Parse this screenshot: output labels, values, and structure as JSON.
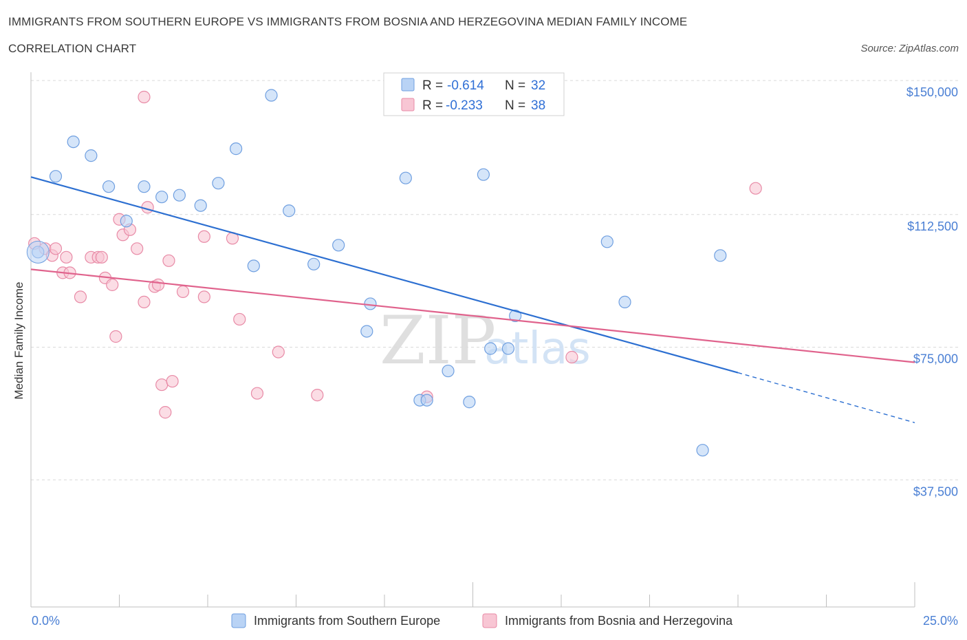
{
  "title_line1": "IMMIGRANTS FROM SOUTHERN EUROPE VS IMMIGRANTS FROM BOSNIA AND HERZEGOVINA MEDIAN FAMILY INCOME",
  "title_line2": "CORRELATION CHART",
  "source": "Source: ZipAtlas.com",
  "watermark": {
    "zip": "ZIP",
    "atlas": "atlas"
  },
  "colors": {
    "blue_fill": "#b9d3f5",
    "blue_stroke": "#6f9fe0",
    "blue_line": "#2c6fd1",
    "pink_fill": "#f8c6d4",
    "pink_stroke": "#e88aa6",
    "pink_line": "#e0628c",
    "grid": "#d9d9d9",
    "axis": "#bfbfbf"
  },
  "legend": {
    "rows": [
      {
        "r_label": "R =",
        "r_value": "-0.614",
        "n_label": "N =",
        "n_value": "32"
      },
      {
        "r_label": "R =",
        "r_value": "-0.233",
        "n_label": "N =",
        "n_value": "38"
      }
    ]
  },
  "chart_data": {
    "type": "scatter",
    "title": "IMMIGRANTS FROM SOUTHERN EUROPE VS IMMIGRANTS FROM BOSNIA AND HERZEGOVINA MEDIAN FAMILY INCOME",
    "subtitle": "CORRELATION CHART",
    "xlabel": "",
    "ylabel": "Median Family Income",
    "xlim": [
      0,
      25
    ],
    "ylim": [
      0,
      150000
    ],
    "x_tick_labels": [
      "0.0%",
      "25.0%"
    ],
    "y_ticks": [
      37500,
      75000,
      112500,
      150000
    ],
    "y_tick_labels": [
      "$37,500",
      "$75,000",
      "$112,500",
      "$150,000"
    ],
    "grid": "horizontal dashed",
    "legend_position": "top-center",
    "series": [
      {
        "name": "Immigrants from Southern Europe",
        "color": "#6f9fe0",
        "r": -0.614,
        "n": 32,
        "trend": {
          "x0": 0,
          "y0": 124800,
          "x1": 20,
          "y1": 68000,
          "dash_to_x": 25,
          "dash_to_y": 53500
        },
        "points": [
          [
            0.2,
            103000
          ],
          [
            0.7,
            125000
          ],
          [
            1.2,
            135000
          ],
          [
            1.7,
            131000
          ],
          [
            2.2,
            122000
          ],
          [
            2.7,
            112000
          ],
          [
            3.2,
            122000
          ],
          [
            3.7,
            119000
          ],
          [
            4.2,
            119500
          ],
          [
            4.8,
            116500
          ],
          [
            5.3,
            123000
          ],
          [
            5.8,
            133000
          ],
          [
            6.3,
            99000
          ],
          [
            6.8,
            148500
          ],
          [
            7.3,
            115000
          ],
          [
            8.0,
            99500
          ],
          [
            8.7,
            105000
          ],
          [
            9.5,
            80000
          ],
          [
            9.6,
            88000
          ],
          [
            10.6,
            124500
          ],
          [
            11.0,
            60000
          ],
          [
            11.2,
            60000
          ],
          [
            11.8,
            68500
          ],
          [
            12.4,
            59500
          ],
          [
            12.8,
            125500
          ],
          [
            13.0,
            75000
          ],
          [
            13.5,
            75000
          ],
          [
            13.7,
            84500
          ],
          [
            16.3,
            106000
          ],
          [
            16.8,
            88500
          ],
          [
            19.5,
            102000
          ],
          [
            19.0,
            45500
          ]
        ]
      },
      {
        "name": "Immigrants from Bosnia and Herzegovina",
        "color": "#e88aa6",
        "r": -0.233,
        "n": 38,
        "trend": {
          "x0": 0,
          "y0": 98000,
          "x1": 25,
          "y1": 71000
        },
        "points": [
          [
            0.1,
            105500
          ],
          [
            0.4,
            104000
          ],
          [
            0.6,
            102000
          ],
          [
            0.7,
            104000
          ],
          [
            0.9,
            97000
          ],
          [
            1.0,
            101500
          ],
          [
            1.1,
            97000
          ],
          [
            1.4,
            90000
          ],
          [
            1.7,
            101500
          ],
          [
            1.9,
            101500
          ],
          [
            2.0,
            101500
          ],
          [
            2.1,
            95500
          ],
          [
            2.3,
            93500
          ],
          [
            2.4,
            78500
          ],
          [
            2.5,
            112500
          ],
          [
            2.6,
            108000
          ],
          [
            2.8,
            109500
          ],
          [
            3.0,
            104000
          ],
          [
            3.2,
            88500
          ],
          [
            3.3,
            116000
          ],
          [
            3.5,
            93000
          ],
          [
            3.6,
            93500
          ],
          [
            3.7,
            64500
          ],
          [
            3.8,
            56500
          ],
          [
            3.9,
            100500
          ],
          [
            4.0,
            65500
          ],
          [
            4.3,
            91500
          ],
          [
            4.9,
            90000
          ],
          [
            5.7,
            107000
          ],
          [
            5.9,
            83500
          ],
          [
            6.4,
            62000
          ],
          [
            7.0,
            74000
          ],
          [
            8.1,
            61500
          ],
          [
            11.2,
            61000
          ],
          [
            15.3,
            72500
          ],
          [
            20.5,
            121500
          ],
          [
            3.2,
            148000
          ],
          [
            4.9,
            107500
          ]
        ]
      }
    ]
  },
  "bottom_legend": [
    {
      "label": "Immigrants from Southern Europe"
    },
    {
      "label": "Immigrants from Bosnia and Herzegovina"
    }
  ]
}
